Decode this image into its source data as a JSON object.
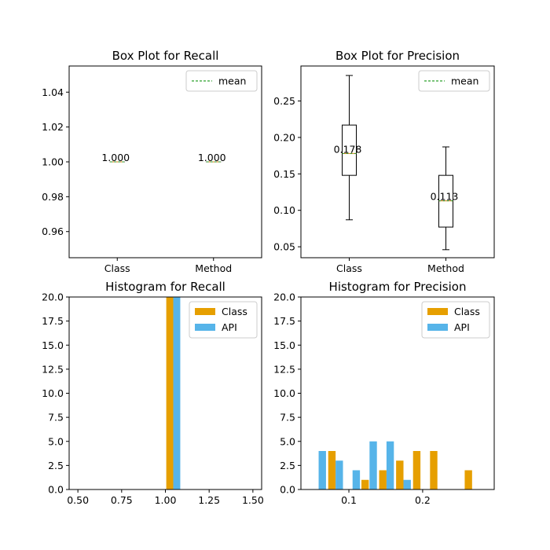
{
  "chart_data": [
    {
      "id": "box-recall",
      "type": "box",
      "title": "Box Plot for Recall",
      "categories": [
        "Class",
        "Method"
      ],
      "ylim": [
        0.945,
        1.055
      ],
      "yticks": [
        "0.96",
        "0.98",
        "1.00",
        "1.02",
        "1.04"
      ],
      "boxes": [
        {
          "category": "Class",
          "min": 1.0,
          "q1": 1.0,
          "median": 1.0,
          "q3": 1.0,
          "max": 1.0,
          "mean": 1.0,
          "mean_label": "1.000"
        },
        {
          "category": "Method",
          "min": 1.0,
          "q1": 1.0,
          "median": 1.0,
          "q3": 1.0,
          "max": 1.0,
          "mean": 1.0,
          "mean_label": "1.000"
        }
      ],
      "legend": [
        {
          "name": "mean",
          "style": "dashed",
          "color": "#2ca02c"
        }
      ],
      "legend_position": "upper-right"
    },
    {
      "id": "box-precision",
      "type": "box",
      "title": "Box Plot for Precision",
      "categories": [
        "Class",
        "Method"
      ],
      "ylim": [
        0.035,
        0.298
      ],
      "yticks": [
        "0.05",
        "0.10",
        "0.15",
        "0.20",
        "0.25"
      ],
      "boxes": [
        {
          "category": "Class",
          "min": 0.087,
          "q1": 0.148,
          "median": 0.178,
          "q3": 0.217,
          "max": 0.285,
          "mean": 0.178,
          "mean_label": "0.178"
        },
        {
          "category": "Method",
          "min": 0.046,
          "q1": 0.077,
          "median": 0.113,
          "q3": 0.148,
          "max": 0.187,
          "mean": 0.113,
          "mean_label": "0.113"
        }
      ],
      "legend": [
        {
          "name": "mean",
          "style": "dashed",
          "color": "#2ca02c"
        }
      ],
      "legend_position": "upper-right"
    },
    {
      "id": "hist-recall",
      "type": "bar",
      "title": "Histogram for Recall",
      "xlim": [
        0.45,
        1.55
      ],
      "ylim": [
        0,
        20
      ],
      "xticks": [
        "0.50",
        "0.75",
        "1.00",
        "1.25",
        "1.50"
      ],
      "yticks": [
        "0.0",
        "2.5",
        "5.0",
        "7.5",
        "10.0",
        "12.5",
        "15.0",
        "17.5",
        "20.0"
      ],
      "series": [
        {
          "name": "Class",
          "color": "#e69f00",
          "bars": [
            {
              "x0": 1.005,
              "x1": 1.045,
              "value": 20
            }
          ]
        },
        {
          "name": "API",
          "color": "#56b4e9",
          "bars": [
            {
              "x0": 1.045,
              "x1": 1.085,
              "value": 20
            }
          ]
        }
      ],
      "legend_position": "upper-right"
    },
    {
      "id": "hist-precision",
      "type": "bar",
      "title": "Histogram for Precision",
      "xlim": [
        0.035,
        0.297
      ],
      "ylim": [
        0,
        20
      ],
      "xticks": [
        "0.1",
        "0.2"
      ],
      "yticks": [
        "0.0",
        "2.5",
        "5.0",
        "7.5",
        "10.0",
        "12.5",
        "15.0",
        "17.5",
        "20.0"
      ],
      "series": [
        {
          "name": "Class",
          "color": "#e69f00",
          "bars": [
            {
              "x0": 0.072,
              "x1": 0.082,
              "value": 4
            },
            {
              "x0": 0.117,
              "x1": 0.127,
              "value": 1
            },
            {
              "x0": 0.141,
              "x1": 0.151,
              "value": 2
            },
            {
              "x0": 0.164,
              "x1": 0.174,
              "value": 3
            },
            {
              "x0": 0.187,
              "x1": 0.197,
              "value": 4
            },
            {
              "x0": 0.21,
              "x1": 0.22,
              "value": 4
            },
            {
              "x0": 0.257,
              "x1": 0.267,
              "value": 2
            }
          ]
        },
        {
          "name": "API",
          "color": "#56b4e9",
          "bars": [
            {
              "x0": 0.059,
              "x1": 0.069,
              "value": 4
            },
            {
              "x0": 0.082,
              "x1": 0.092,
              "value": 3
            },
            {
              "x0": 0.105,
              "x1": 0.115,
              "value": 2
            },
            {
              "x0": 0.128,
              "x1": 0.138,
              "value": 5
            },
            {
              "x0": 0.151,
              "x1": 0.161,
              "value": 5
            },
            {
              "x0": 0.174,
              "x1": 0.184,
              "value": 1
            }
          ]
        }
      ],
      "legend_position": "upper-right"
    }
  ]
}
